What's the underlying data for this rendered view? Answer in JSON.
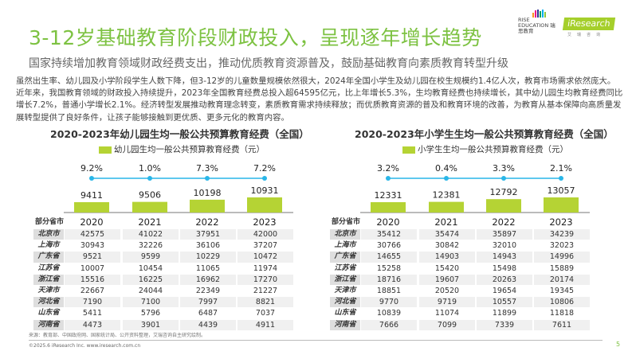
{
  "header": {
    "title": "3-12岁基础教育阶段财政投入，呈现逐年增长趋势",
    "subtitle": "国家持续增加教育领域财政经费支出，推动优质教育资源普及，鼓励基础教育向素质教育转型升级",
    "body": "虽然出生率、幼儿园及小学阶段学生人数下降，但3-12岁的儿童数量规模依然很大，2024年全国小学生及幼儿园在校生规模约1.4亿人次，教育市场需求依然庞大。近年来，我国教育领域的财政投入持续提升，2023年全国教育经费总投入超64595亿元，比上年增长5.3%，生均教育经费也持续增长，其中幼儿园生均教育经费同比增长7.2%，普通小学增长2.1%。经济转型发展推动教育理念转变，素质教育需求持续释放；而优质教育资源的普及和教育环境的改善，为教育从基本保障向高质量发展转型提供了良好条件，让孩子能够接触到更优质、更多元化的教育内容。"
  },
  "logos": {
    "rise": "RISE EDUCATION 瑞思教育",
    "iresearch": "iResearch",
    "iresearch_cn": "艾瑞咨询"
  },
  "colors": {
    "accent": "#7dc242",
    "bar": "#b5d334",
    "line": "#29b6e8"
  },
  "chart_data": [
    {
      "type": "bar",
      "title": "2020-2023年幼儿园生均一般公共预算教育经费（全国）",
      "legend": "幼儿园生均一般公共预算教育经费（元）",
      "categories": [
        "2020",
        "2021",
        "2022",
        "2023"
      ],
      "values": [
        9411,
        9506,
        10198,
        10931
      ],
      "growth": [
        "9.2%",
        "1.0%",
        "7.3%",
        "7.2%"
      ],
      "table": {
        "header": "部分省市",
        "rows": [
          {
            "name": "北京市",
            "values": [
              42575,
              41022,
              37951,
              42000
            ]
          },
          {
            "name": "上海市",
            "values": [
              30943,
              32226,
              36106,
              37207
            ]
          },
          {
            "name": "广东省",
            "values": [
              9521,
              9599,
              10229,
              10472
            ]
          },
          {
            "name": "江苏省",
            "values": [
              10007,
              10454,
              11065,
              11974
            ]
          },
          {
            "name": "浙江省",
            "values": [
              15516,
              16225,
              16962,
              17270
            ]
          },
          {
            "name": "天津市",
            "values": [
              22667,
              24044,
              22349,
              21227
            ]
          },
          {
            "name": "河北省",
            "values": [
              7190,
              7100,
              7997,
              8821
            ]
          },
          {
            "name": "山东省",
            "values": [
              5411,
              5796,
              6487,
              7037
            ]
          },
          {
            "name": "河南省",
            "values": [
              4473,
              3901,
              4439,
              4911
            ]
          }
        ]
      }
    },
    {
      "type": "bar",
      "title": "2020-2023年小学生生均一般公共预算教育经费（全国）",
      "legend": "小学生生均一般公共预算教育经费（元）",
      "categories": [
        "2020",
        "2021",
        "2022",
        "2023"
      ],
      "values": [
        12331,
        12381,
        12792,
        13057
      ],
      "growth": [
        "3.2%",
        "0.4%",
        "3.3%",
        "2.1%"
      ],
      "table": {
        "header": "部分省市",
        "rows": [
          {
            "name": "北京市",
            "values": [
              35412,
              35474,
              35897,
              34239
            ]
          },
          {
            "name": "上海市",
            "values": [
              30766,
              30842,
              32010,
              32023
            ]
          },
          {
            "name": "广东省",
            "values": [
              14655,
              14903,
              14943,
              14996
            ]
          },
          {
            "name": "江苏省",
            "values": [
              15258,
              15420,
              15498,
              15889
            ]
          },
          {
            "name": "浙江省",
            "values": [
              18716,
              19607,
              20263,
              20174
            ]
          },
          {
            "name": "天津市",
            "values": [
              18851,
              20520,
              19654,
              19345
            ]
          },
          {
            "name": "河北省",
            "values": [
              9770,
              9719,
              10557,
              10806
            ]
          },
          {
            "name": "山东省",
            "values": [
              10839,
              11074,
              11899,
              11818
            ]
          },
          {
            "name": "河南省",
            "values": [
              7666,
              7099,
              7339,
              7611
            ]
          }
        ]
      }
    }
  ],
  "footer": {
    "source": "来源：教育部、中国政府网、国家统计局、公开资料整理，艾瑞咨询自主研究绘制。",
    "copyright": "©2025.6 iResearch Inc. www.iresearch.com.cn",
    "page": "5"
  }
}
